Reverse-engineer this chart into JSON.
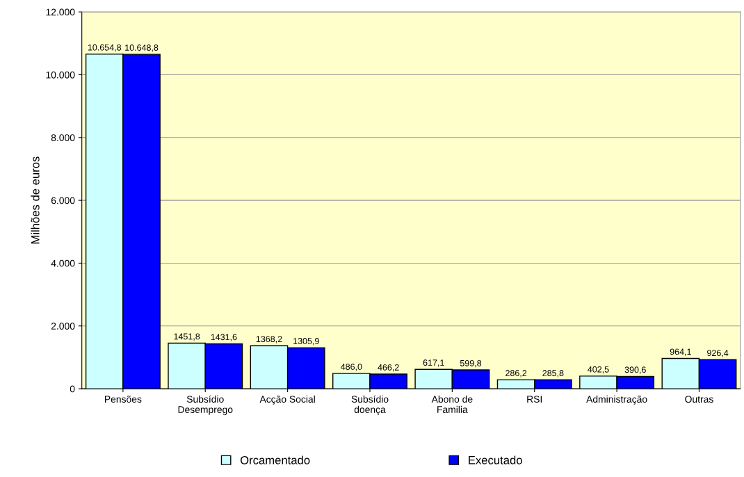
{
  "chart_data": {
    "type": "bar",
    "ylabel": "Milhões de euros",
    "categories": [
      "Pensões",
      "Subsídio\nDesemprego",
      "Acção Social",
      "Subsídio\ndoença",
      "Abono de\nFamilia",
      "RSI",
      "Administração",
      "Outras"
    ],
    "series": [
      {
        "name": "Orcamentado",
        "color": "#ccffff",
        "values": [
          10654.8,
          1451.8,
          1368.2,
          486.0,
          617.1,
          286.2,
          402.5,
          964.1
        ],
        "value_labels": [
          "10.654,8",
          "1451,8",
          "1368,2",
          "486,0",
          "617,1",
          "286,2",
          "402,5",
          "964,1"
        ]
      },
      {
        "name": "Executado",
        "color": "#0000ff",
        "values": [
          10648.8,
          1431.6,
          1305.9,
          466.2,
          599.8,
          285.8,
          390.6,
          926.4
        ],
        "value_labels": [
          "10.648,8",
          "1431,6",
          "1305,9",
          "466,2",
          "599,8",
          "285,8",
          "390,6",
          "926,4"
        ]
      }
    ],
    "ylim": [
      0,
      12000
    ],
    "yticks": [
      {
        "value": 0,
        "label": "0"
      },
      {
        "value": 2000,
        "label": "2.000"
      },
      {
        "value": 4000,
        "label": "4.000"
      },
      {
        "value": 6000,
        "label": "6.000"
      },
      {
        "value": 8000,
        "label": "8.000"
      },
      {
        "value": 10000,
        "label": "10.000"
      },
      {
        "value": 12000,
        "label": "12.000"
      }
    ],
    "grid": "y",
    "legend": "bottom"
  }
}
